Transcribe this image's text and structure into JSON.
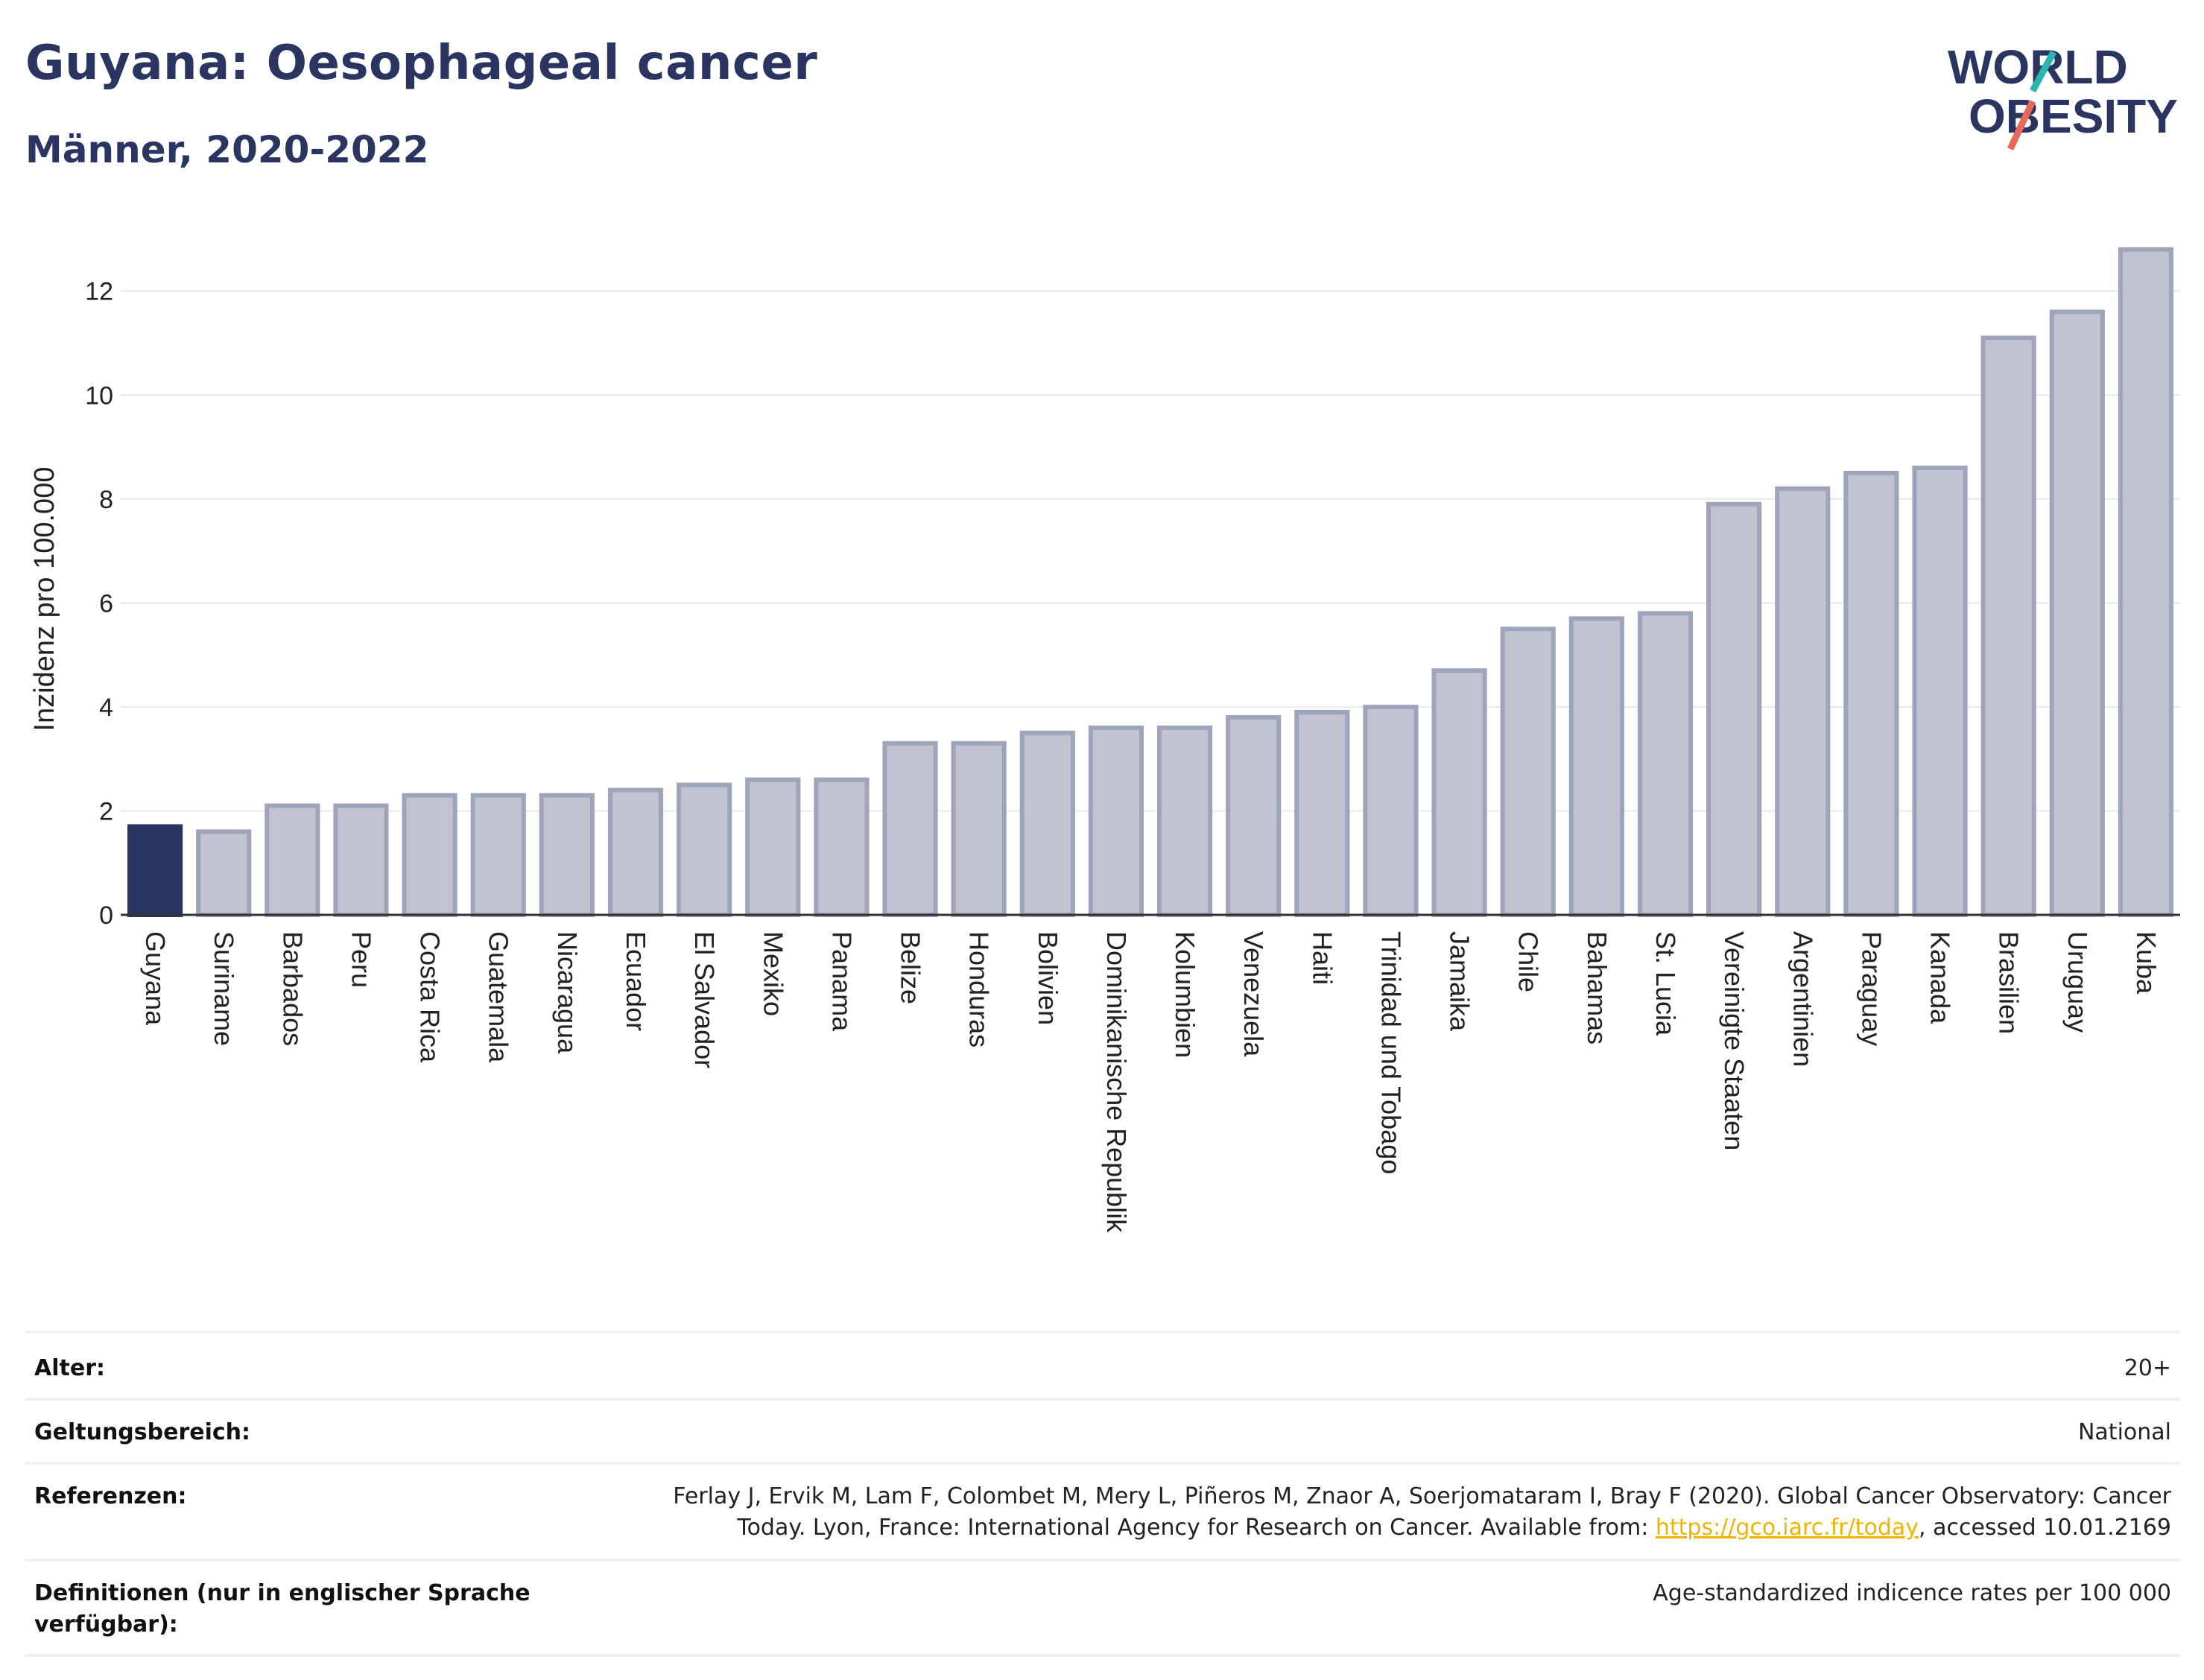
{
  "title": "Guyana: Oesophageal cancer",
  "subtitle": "Männer, 2020-2022",
  "logo": {
    "line1": "WORLD",
    "line2": "OBESITY"
  },
  "colors": {
    "highlight": "#2b3561",
    "bar_fill": "#c0c4d1",
    "bar_stroke": "#9ea4ba",
    "accent_teal": "#2bb5b0",
    "accent_red": "#e8685a"
  },
  "chart_data": {
    "type": "bar",
    "ylabel": "Inzidenz pro 100.000",
    "ylim": [
      0,
      13.3
    ],
    "yticks": [
      0,
      2,
      4,
      6,
      8,
      10,
      12
    ],
    "grid": true,
    "highlight_category": "Guyana",
    "categories": [
      "Guyana",
      "Suriname",
      "Barbados",
      "Peru",
      "Costa Rica",
      "Guatemala",
      "Nicaragua",
      "Ecuador",
      "El Salvador",
      "Mexiko",
      "Panama",
      "Belize",
      "Honduras",
      "Bolivien",
      "Dominikanische Republik",
      "Kolumbien",
      "Venezuela",
      "Haiti",
      "Trinidad und Tobago",
      "Jamaika",
      "Chile",
      "Bahamas",
      "St. Lucia",
      "Vereinigte Staaten",
      "Argentinien",
      "Paraguay",
      "Kanada",
      "Brasilien",
      "Uruguay",
      "Kuba"
    ],
    "values": [
      1.7,
      1.6,
      2.1,
      2.1,
      2.3,
      2.3,
      2.3,
      2.4,
      2.5,
      2.6,
      2.6,
      3.3,
      3.3,
      3.5,
      3.6,
      3.6,
      3.8,
      3.9,
      4.0,
      4.7,
      5.5,
      5.7,
      5.8,
      7.9,
      8.2,
      8.5,
      8.6,
      11.1,
      11.6,
      12.8
    ]
  },
  "info": {
    "rows": [
      {
        "label": "Alter:",
        "value": "20+"
      },
      {
        "label": "Geltungsbereich:",
        "value": "National"
      },
      {
        "label": "Referenzen:",
        "value_before": "Ferlay J, Ervik M, Lam F, Colombet M, Mery L, Piñeros M, Znaor A, Soerjomataram I, Bray F (2020). Global Cancer Observatory: Cancer Today. Lyon, France: International Agency for Research on Cancer. Available from: ",
        "link": "https://gco.iarc.fr/today",
        "value_after": ", accessed 10.01.2169"
      },
      {
        "label": "Definitionen (nur in englischer Sprache verfügbar):",
        "value": "Age-standardized indicence rates per 100 000"
      }
    ]
  }
}
